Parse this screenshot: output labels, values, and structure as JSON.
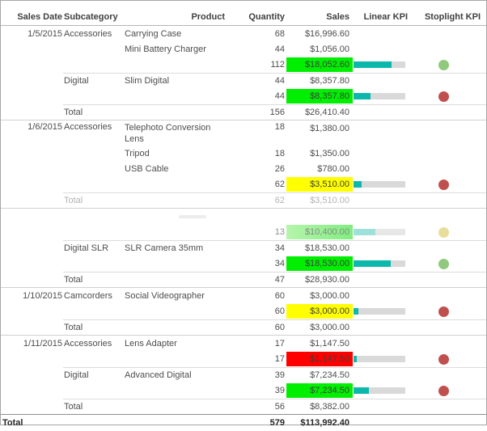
{
  "header": {
    "columns": [
      "Sales Date",
      "Subcategory",
      "Product",
      "Quantity",
      "Sales",
      "Linear KPI",
      "Stoplight KPI"
    ]
  },
  "colors": {
    "kpi_fill": "#0bb8ab",
    "kpi_track": "#d9d9d9",
    "kpi_fill_faded": "#63cfc6",
    "highlights": {
      "green": "#00ef00",
      "yellow": "#ffff00",
      "red": "#ff0000",
      "green_faded": "linear-gradient(90deg,#8bef7b,#33e533)"
    },
    "stoplights": {
      "green": "#8fca7c",
      "red": "#c0504d",
      "yellow": "#d8c95c"
    }
  },
  "sections": [
    {
      "rows": [
        {
          "type": "product",
          "date": "1/5/2015",
          "subcategory": "Accessories",
          "product": "Carrying Case",
          "qty": "68",
          "sales": "$16,996.60"
        },
        {
          "type": "product",
          "product": "Mini Battery Charger",
          "qty": "44",
          "sales": "$1,056.00"
        },
        {
          "type": "subtotal",
          "qty": "112",
          "sales": "$18,052.60",
          "highlight": "green",
          "bar_pct": 73,
          "light": "green"
        },
        {
          "type": "product",
          "subcategory": "Digital",
          "product": "Slim Digital",
          "qty": "44",
          "sales": "$8,357.80",
          "groupline": true
        },
        {
          "type": "subtotal",
          "qty": "44",
          "sales": "$8,357.80",
          "highlight": "green",
          "bar_pct": 33,
          "light": "red"
        },
        {
          "type": "total",
          "label": "Total",
          "qty": "156",
          "sales": "$26,410.40",
          "groupline": true
        }
      ]
    },
    {
      "rows": [
        {
          "type": "product",
          "date": "1/6/2015",
          "subcategory": "Accessories",
          "product": "Telephoto Conversion Lens",
          "qty": "18",
          "sales": "$1,380.00",
          "tall": true
        },
        {
          "type": "product",
          "product": "Tripod",
          "qty": "18",
          "sales": "$1,350.00"
        },
        {
          "type": "product",
          "product": "USB Cable",
          "qty": "26",
          "sales": "$780.00"
        },
        {
          "type": "subtotal",
          "qty": "62",
          "sales": "$3,510.00",
          "highlight": "yellow",
          "bar_pct": 15,
          "light": "red"
        },
        {
          "type": "total",
          "label": "Total",
          "qty": "62",
          "sales": "$3,510.00",
          "faded": true,
          "groupline": true
        }
      ]
    },
    {
      "rows": [
        {
          "type": "ghost"
        },
        {
          "type": "subtotal",
          "qty": "13",
          "sales": "$10,400.00",
          "highlight": "green_faded",
          "bar_pct": 42,
          "light": "yellow",
          "fadedsub": true
        },
        {
          "type": "product",
          "subcategory": "Digital SLR",
          "product": "SLR Camera 35mm",
          "qty": "34",
          "sales": "$18,530.00",
          "groupline": true
        },
        {
          "type": "subtotal",
          "qty": "34",
          "sales": "$18,530.00",
          "highlight": "green",
          "bar_pct": 72,
          "light": "green"
        },
        {
          "type": "total",
          "label": "Total",
          "qty": "47",
          "sales": "$28,930.00",
          "groupline": true
        }
      ]
    },
    {
      "rows": [
        {
          "type": "product",
          "date": "1/10/2015",
          "subcategory": "Camcorders",
          "product": "Social Videographer",
          "qty": "60",
          "sales": "$3,000.00"
        },
        {
          "type": "subtotal",
          "qty": "60",
          "sales": "$3,000.00",
          "highlight": "yellow",
          "bar_pct": 10,
          "light": "red"
        },
        {
          "type": "total",
          "label": "Total",
          "qty": "60",
          "sales": "$3,000.00",
          "groupline": true
        }
      ]
    },
    {
      "rows": [
        {
          "type": "product",
          "date": "1/11/2015",
          "subcategory": "Accessories",
          "product": "Lens Adapter",
          "qty": "17",
          "sales": "$1,147.50"
        },
        {
          "type": "subtotal",
          "qty": "17",
          "sales": "$1,147.50",
          "highlight": "red",
          "bar_pct": 6,
          "light": "red"
        },
        {
          "type": "product",
          "subcategory": "Digital",
          "product": "Advanced Digital",
          "qty": "39",
          "sales": "$7,234.50",
          "groupline": true
        },
        {
          "type": "subtotal",
          "qty": "39",
          "sales": "$7,234.50",
          "highlight": "green",
          "bar_pct": 30,
          "light": "red"
        },
        {
          "type": "total",
          "label": "Total",
          "qty": "56",
          "sales": "$8,382.00",
          "groupline": true
        }
      ]
    }
  ],
  "grand_total": {
    "label": "Total",
    "qty": "579",
    "sales": "$113,992.40"
  }
}
